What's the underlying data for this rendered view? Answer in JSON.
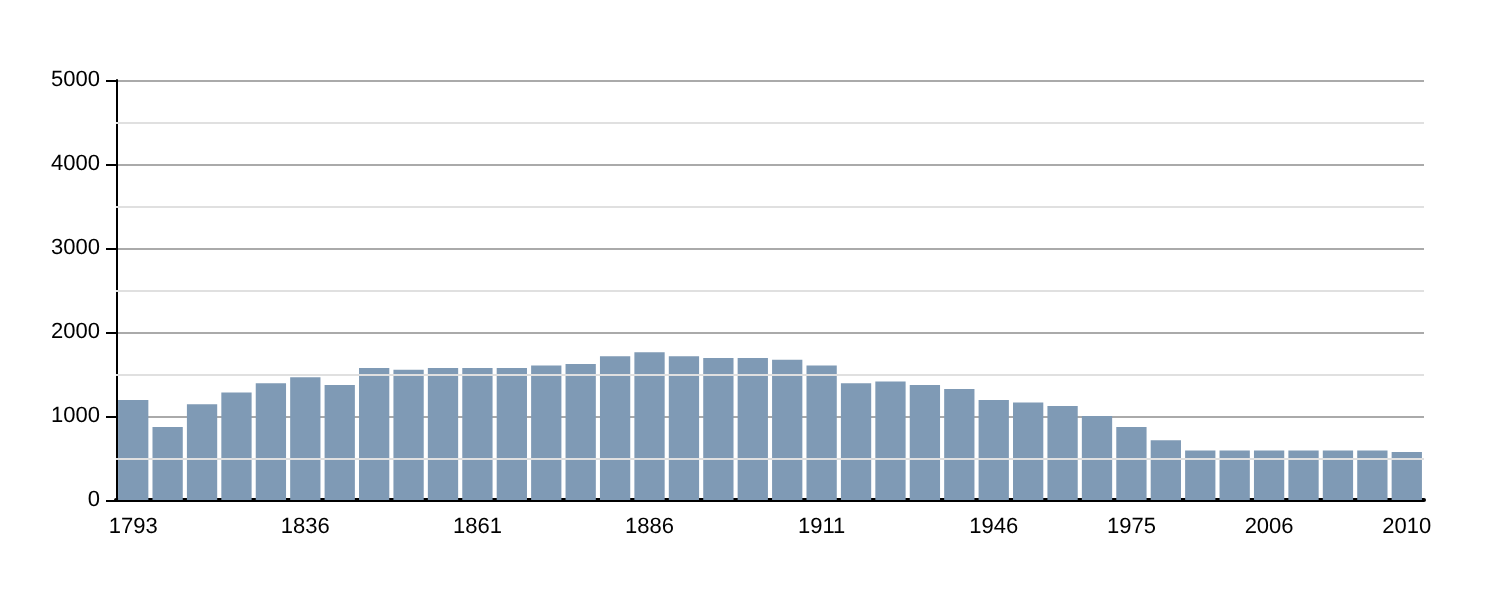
{
  "chart_data": {
    "type": "bar",
    "categories": [
      "1793",
      null,
      null,
      null,
      null,
      "1836",
      null,
      null,
      null,
      null,
      "1861",
      null,
      null,
      null,
      null,
      "1886",
      null,
      null,
      null,
      null,
      "1911",
      null,
      null,
      null,
      null,
      "1946",
      null,
      null,
      null,
      "1975",
      null,
      null,
      null,
      "2006",
      null,
      null,
      null,
      "2010"
    ],
    "values": [
      1190,
      870,
      1140,
      1280,
      1390,
      1460,
      1370,
      1570,
      1550,
      1570,
      1570,
      1570,
      1600,
      1620,
      1710,
      1760,
      1710,
      1690,
      1690,
      1670,
      1600,
      1390,
      1410,
      1370,
      1320,
      1190,
      1160,
      1120,
      1000,
      870,
      710,
      590,
      590,
      590,
      590,
      590,
      590,
      570
    ],
    "color": "#7f9ab5",
    "ylim": [
      0,
      5000
    ],
    "yticks": [
      0,
      1000,
      2000,
      3000,
      4000,
      5000
    ],
    "grid": "y"
  }
}
